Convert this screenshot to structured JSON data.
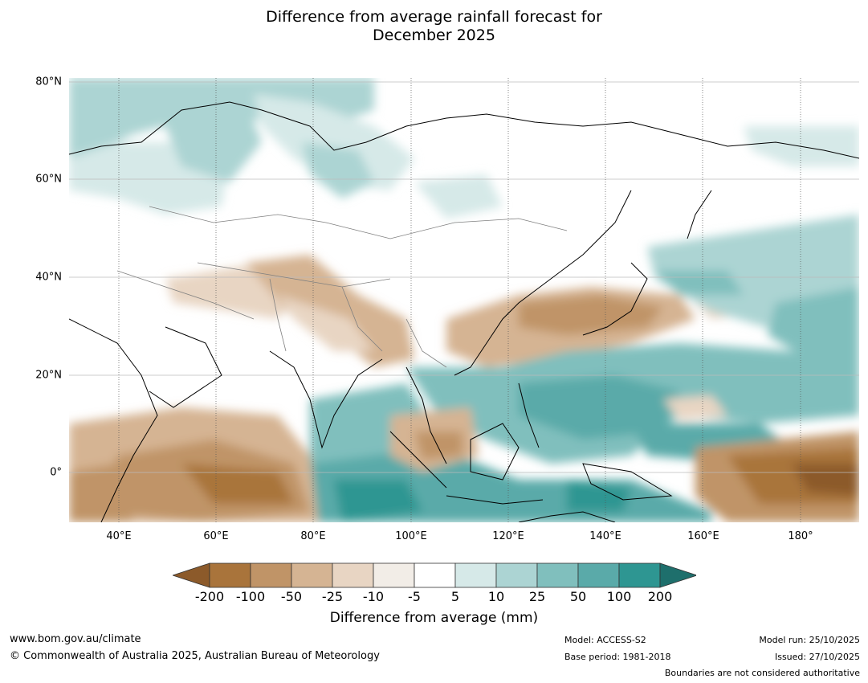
{
  "title": {
    "line1": "Difference from average rainfall forecast for",
    "line2": "December 2025"
  },
  "map": {
    "lat_labels": [
      "80°N",
      "60°N",
      "40°N",
      "20°N",
      "0°"
    ],
    "lon_labels": [
      "40°E",
      "60°E",
      "80°E",
      "100°E",
      "120°E",
      "140°E",
      "160°E",
      "180°"
    ],
    "colors": {
      "land_outline": "#000000",
      "border": "#808080",
      "grid": "#bbbbbb"
    }
  },
  "legend": {
    "title": "Difference from average (mm)",
    "ticks": [
      "-200",
      "-100",
      "-50",
      "-25",
      "-10",
      "-5",
      "5",
      "10",
      "25",
      "50",
      "100",
      "200"
    ],
    "colors": [
      "#8c5a2a",
      "#a9743b",
      "#c09467",
      "#d5b493",
      "#e8d5c3",
      "#f2ede7",
      "#ffffff",
      "#d6e9e8",
      "#acd4d3",
      "#80bfbd",
      "#5aaaa9",
      "#2e9692",
      "#1e6f6c"
    ]
  },
  "footer": {
    "website": "www.bom.gov.au/climate",
    "copyright": "© Commonwealth of Australia 2025, Australian Bureau of Meteorology",
    "model": "Model: ACCESS-S2",
    "base_period": "Base period: 1981-2018",
    "model_run": "Model run: 25/10/2025",
    "issued": "Issued: 27/10/2025",
    "disclaimer": "Boundaries are not considered authoritative"
  }
}
